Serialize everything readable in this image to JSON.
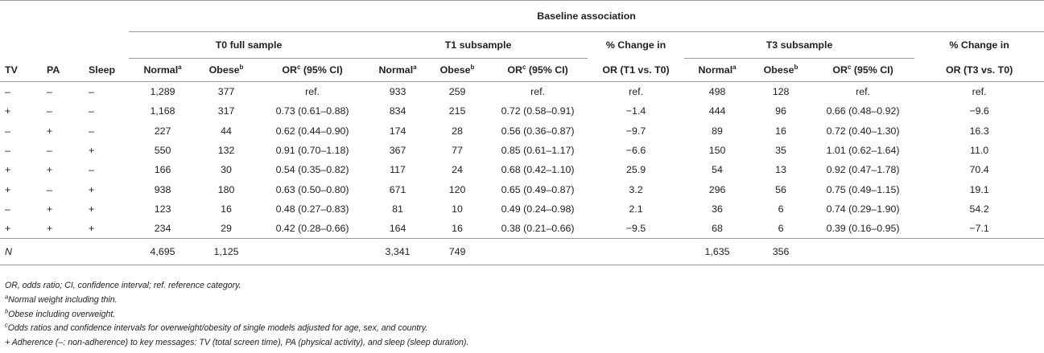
{
  "table": {
    "super_header": "Baseline association",
    "groups": {
      "t0": "T0 full sample",
      "t1": "T1 subsample",
      "pc1_line1": "% Change in",
      "t3": "T3 subsample",
      "pc3_line1": "% Change in"
    },
    "columns": {
      "tv": "TV",
      "pa": "PA",
      "sleep": "Sleep",
      "normal": "Normal",
      "normal_sup": "a",
      "obese": "Obese",
      "obese_sup": "b",
      "or": "OR",
      "or_sup": "c",
      "or_ci": " (95% CI)",
      "pc1_line2": "OR (T1 vs. T0)",
      "pc3_line2": "OR (T3 vs. T0)"
    },
    "rows": [
      {
        "tv": "–",
        "pa": "–",
        "sleep": "–",
        "t0n": "1,289",
        "t0o": "377",
        "t0or": "ref.",
        "t1n": "933",
        "t1o": "259",
        "t1or": "ref.",
        "pc1": "ref.",
        "t3n": "498",
        "t3o": "128",
        "t3or": "ref.",
        "pc3": "ref."
      },
      {
        "tv": "+",
        "pa": "–",
        "sleep": "–",
        "t0n": "1,168",
        "t0o": "317",
        "t0or": "0.73 (0.61–0.88)",
        "t1n": "834",
        "t1o": "215",
        "t1or": "0.72 (0.58–0.91)",
        "pc1": "−1.4",
        "t3n": "444",
        "t3o": "96",
        "t3or": "0.66 (0.48–0.92)",
        "pc3": "−9.6"
      },
      {
        "tv": "–",
        "pa": "+",
        "sleep": "–",
        "t0n": "227",
        "t0o": "44",
        "t0or": "0.62 (0.44–0.90)",
        "t1n": "174",
        "t1o": "28",
        "t1or": "0.56 (0.36–0.87)",
        "pc1": "−9.7",
        "t3n": "89",
        "t3o": "16",
        "t3or": "0.72 (0.40–1.30)",
        "pc3": "16.3"
      },
      {
        "tv": "–",
        "pa": "–",
        "sleep": "+",
        "t0n": "550",
        "t0o": "132",
        "t0or": "0.91 (0.70–1.18)",
        "t1n": "367",
        "t1o": "77",
        "t1or": "0.85 (0.61–1.17)",
        "pc1": "−6.6",
        "t3n": "150",
        "t3o": "35",
        "t3or": "1.01 (0.62–1.64)",
        "pc3": "11.0"
      },
      {
        "tv": "+",
        "pa": "+",
        "sleep": "–",
        "t0n": "166",
        "t0o": "30",
        "t0or": "0.54 (0.35–0.82)",
        "t1n": "117",
        "t1o": "24",
        "t1or": "0.68 (0.42–1.10)",
        "pc1": "25.9",
        "t3n": "54",
        "t3o": "13",
        "t3or": "0.92 (0.47–1.78)",
        "pc3": "70.4"
      },
      {
        "tv": "+",
        "pa": "–",
        "sleep": "+",
        "t0n": "938",
        "t0o": "180",
        "t0or": "0.63 (0.50–0.80)",
        "t1n": "671",
        "t1o": "120",
        "t1or": "0.65 (0.49–0.87)",
        "pc1": "3.2",
        "t3n": "296",
        "t3o": "56",
        "t3or": "0.75 (0.49–1.15)",
        "pc3": "19.1"
      },
      {
        "tv": "–",
        "pa": "+",
        "sleep": "+",
        "t0n": "123",
        "t0o": "16",
        "t0or": "0.48 (0.27–0.83)",
        "t1n": "81",
        "t1o": "10",
        "t1or": "0.49 (0.24–0.98)",
        "pc1": "2.1",
        "t3n": "36",
        "t3o": "6",
        "t3or": "0.74 (0.29–1.90)",
        "pc3": "54.2"
      },
      {
        "tv": "+",
        "pa": "+",
        "sleep": "+",
        "t0n": "234",
        "t0o": "29",
        "t0or": "0.42 (0.28–0.66)",
        "t1n": "164",
        "t1o": "16",
        "t1or": "0.38 (0.21–0.66)",
        "pc1": "−9.5",
        "t3n": "68",
        "t3o": "6",
        "t3or": "0.39 (0.16–0.95)",
        "pc3": "−7.1"
      }
    ],
    "totals": {
      "label": "N",
      "t0n": "4,695",
      "t0o": "1,125",
      "t1n": "3,341",
      "t1o": "749",
      "t3n": "1,635",
      "t3o": "356"
    }
  },
  "footnotes": {
    "abbrev": "OR, odds ratio; CI, confidence interval; ref. reference category.",
    "a_mark": "a",
    "a_text": "Normal weight including thin.",
    "b_mark": "b",
    "b_text": "Obese including overweight.",
    "c_mark": "c",
    "c_text": "Odds ratios and confidence intervals for overweight/obesity of single models adjusted for age, sex, and country.",
    "legend": "+ Adherence (–: non-adherence) to key messages: TV (total screen time), PA (physical activity), and sleep (sleep duration)."
  }
}
